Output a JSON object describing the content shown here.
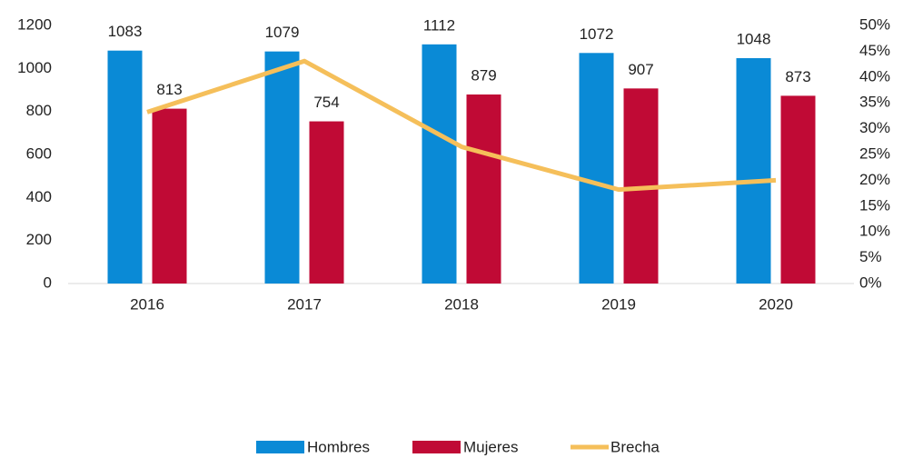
{
  "chart_data": {
    "type": "bar",
    "categories": [
      "2016",
      "2017",
      "2018",
      "2019",
      "2020"
    ],
    "series": [
      {
        "name": "Hombres",
        "color": "#0a8ad6",
        "values": [
          1083,
          1079,
          1112,
          1072,
          1048
        ]
      },
      {
        "name": "Mujeres",
        "color": "#c00a35",
        "values": [
          813,
          754,
          879,
          907,
          873
        ]
      },
      {
        "name": "Brecha",
        "color": "#f5bf5a",
        "type": "line",
        "axis": "y2",
        "values": [
          33.2,
          43.1,
          26.5,
          18.2,
          20.0
        ]
      }
    ],
    "ylim": [
      0,
      1200
    ],
    "yticks": [
      0,
      200,
      400,
      600,
      800,
      1000,
      1200
    ],
    "y2lim": [
      0,
      50
    ],
    "y2ticks": [
      {
        "value": 0,
        "label": "0%"
      },
      {
        "value": 5,
        "label": "5%"
      },
      {
        "value": 10,
        "label": "10%"
      },
      {
        "value": 15,
        "label": "15%"
      },
      {
        "value": 20,
        "label": "20%"
      },
      {
        "value": 25,
        "label": "25%"
      },
      {
        "value": 30,
        "label": "30%"
      },
      {
        "value": 35,
        "label": "35%"
      },
      {
        "value": 40,
        "label": "40%"
      },
      {
        "value": 45,
        "label": "45%"
      },
      {
        "value": 50,
        "label": "50%"
      }
    ],
    "legend": "bottom",
    "grid": false
  }
}
